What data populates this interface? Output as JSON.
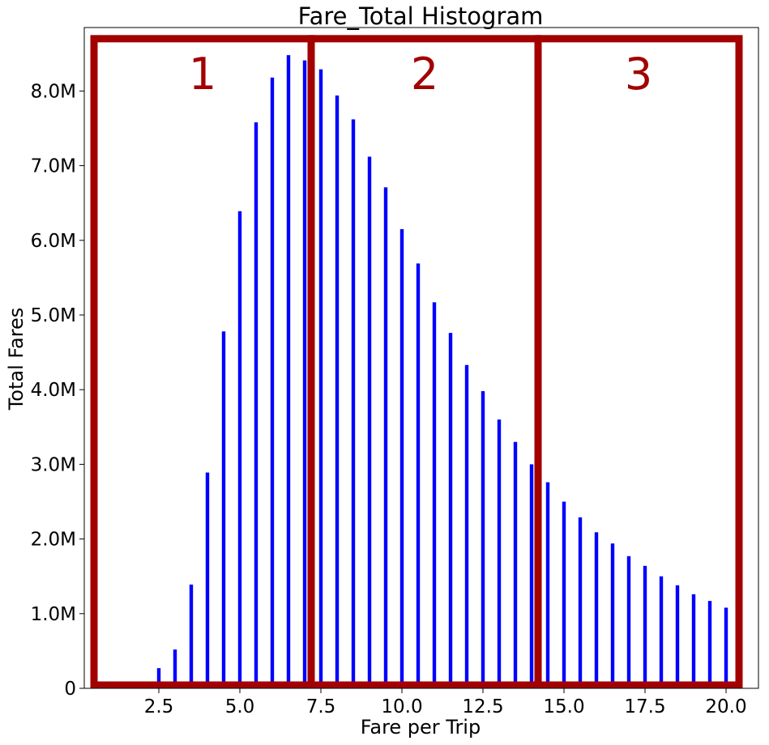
{
  "chart_data": {
    "type": "bar",
    "title": "Fare_Total Histogram",
    "xlabel": "Fare per Trip",
    "ylabel": "Total Fares",
    "x": [
      2.5,
      3.0,
      3.5,
      4.0,
      4.5,
      5.0,
      5.5,
      6.0,
      6.5,
      7.0,
      7.5,
      8.0,
      8.5,
      9.0,
      9.5,
      10.0,
      10.5,
      11.0,
      11.5,
      12.0,
      12.5,
      13.0,
      13.5,
      14.0,
      14.5,
      15.0,
      15.5,
      16.0,
      16.5,
      17.0,
      17.5,
      18.0,
      18.5,
      19.0,
      19.5,
      20.0
    ],
    "values": [
      0.27,
      0.52,
      1.39,
      2.89,
      4.78,
      6.39,
      7.58,
      8.18,
      8.48,
      8.41,
      8.29,
      7.94,
      7.62,
      7.12,
      6.71,
      6.15,
      5.69,
      5.17,
      4.76,
      4.33,
      3.98,
      3.6,
      3.3,
      3.0,
      2.76,
      2.5,
      2.29,
      2.09,
      1.94,
      1.77,
      1.64,
      1.5,
      1.38,
      1.26,
      1.17,
      1.08
    ],
    "value_unit": "M",
    "xlim": [
      0.2,
      21.0
    ],
    "ylim": [
      0,
      8.85
    ],
    "xticks": [
      2.5,
      5.0,
      7.5,
      10.0,
      12.5,
      15.0,
      17.5,
      20.0
    ],
    "xtick_labels": [
      "2.5",
      "5.0",
      "7.5",
      "10.0",
      "12.5",
      "15.0",
      "17.5",
      "20.0"
    ],
    "yticks": [
      0,
      1,
      2,
      3,
      4,
      5,
      6,
      7,
      8
    ],
    "ytick_labels": [
      "0",
      "1.0M",
      "2.0M",
      "3.0M",
      "4.0M",
      "5.0M",
      "6.0M",
      "7.0M",
      "8.0M"
    ],
    "bar_color": "#0000ff",
    "grid": false,
    "annotations": {
      "color": "#a30000",
      "regions": [
        {
          "label": "1",
          "x_range": [
            0.5,
            7.2
          ],
          "y_range": [
            0,
            8.7
          ]
        },
        {
          "label": "2",
          "x_range": [
            7.2,
            14.2
          ],
          "y_range": [
            0,
            8.7
          ]
        },
        {
          "label": "3",
          "x_range": [
            14.2,
            20.4
          ],
          "y_range": [
            0,
            8.7
          ]
        }
      ]
    }
  }
}
